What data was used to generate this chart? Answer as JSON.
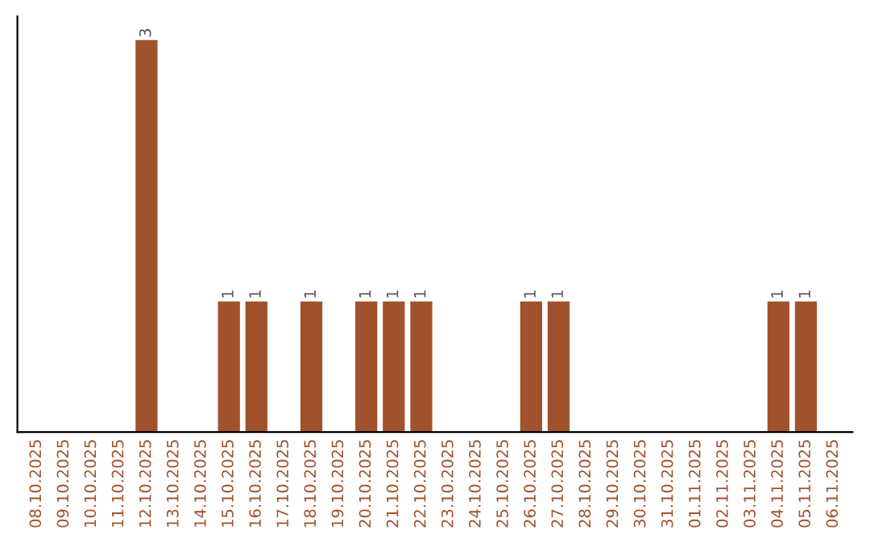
{
  "chart_data": {
    "type": "bar",
    "categories": [
      "08.10.2025",
      "09.10.2025",
      "10.10.2025",
      "11.10.2025",
      "12.10.2025",
      "13.10.2025",
      "14.10.2025",
      "15.10.2025",
      "16.10.2025",
      "17.10.2025",
      "18.10.2025",
      "19.10.2025",
      "20.10.2025",
      "21.10.2025",
      "22.10.2025",
      "23.10.2025",
      "24.10.2025",
      "25.10.2025",
      "26.10.2025",
      "27.10.2025",
      "28.10.2025",
      "29.10.2025",
      "30.10.2025",
      "31.10.2025",
      "01.11.2025",
      "02.11.2025",
      "03.11.2025",
      "04.11.2025",
      "05.11.2025",
      "06.11.2025"
    ],
    "values": [
      0,
      0,
      0,
      0,
      3,
      0,
      0,
      1,
      1,
      0,
      1,
      0,
      1,
      1,
      1,
      0,
      0,
      0,
      1,
      1,
      0,
      0,
      0,
      0,
      0,
      0,
      0,
      1,
      1,
      0
    ],
    "value_labels": [
      null,
      null,
      null,
      null,
      "3",
      null,
      null,
      "1",
      "1",
      null,
      "1",
      null,
      "1",
      "1",
      "1",
      null,
      null,
      null,
      "1",
      "1",
      null,
      null,
      null,
      null,
      null,
      null,
      null,
      "1",
      "1",
      null
    ],
    "color": "#a0522d",
    "grid": false,
    "legend": false,
    "tick_labels": "x"
  }
}
